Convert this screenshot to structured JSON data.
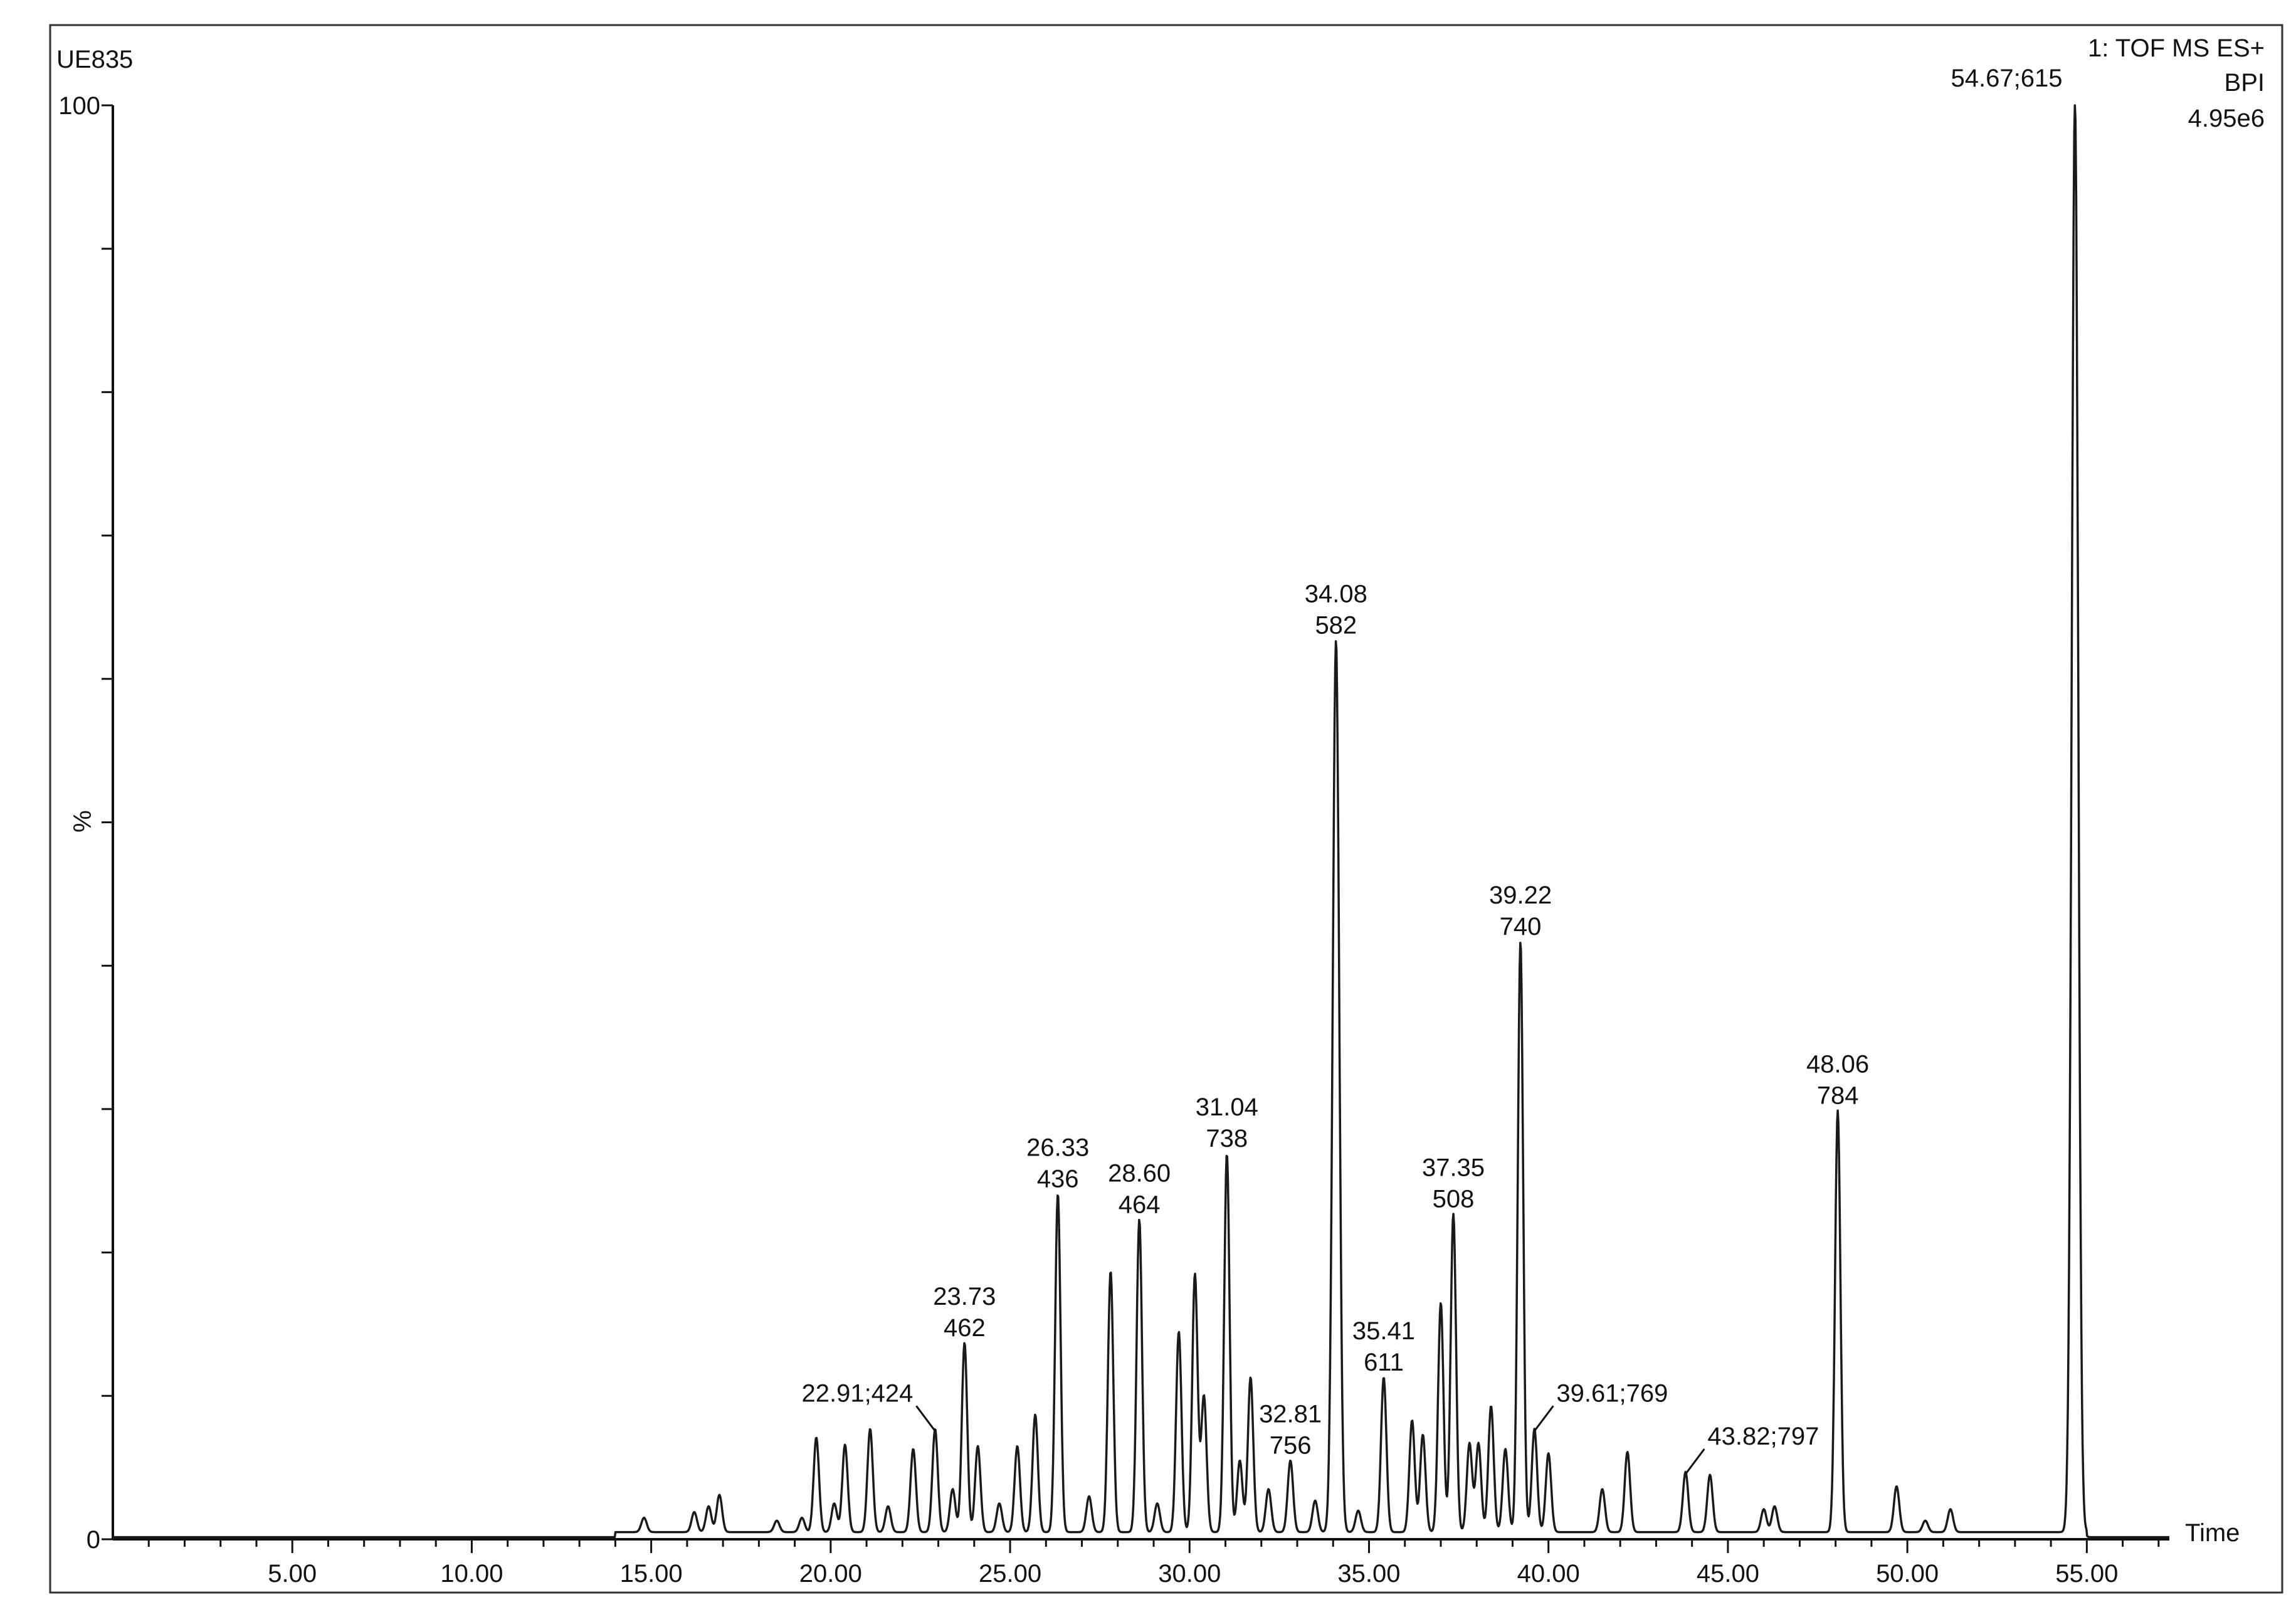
{
  "sample_id": "UE835",
  "header": {
    "function": "1: TOF MS ES+",
    "trace_type": "BPI",
    "base_peak_label": "54.67;615",
    "max_intensity": "4.95e6"
  },
  "colors": {
    "trace": "#1a1a1a",
    "axis": "#111111",
    "background": "#ffffff",
    "frame": "#333333"
  },
  "chart_data": {
    "type": "line",
    "title": "",
    "xlabel": "Time",
    "ylabel": "%",
    "xlim": [
      0,
      57.3
    ],
    "ylim": [
      0,
      100
    ],
    "xticks": [
      5,
      10,
      15,
      20,
      25,
      30,
      35,
      40,
      45,
      50,
      55
    ],
    "xtick_labels": [
      "5.00",
      "10.00",
      "15.00",
      "20.00",
      "25.00",
      "30.00",
      "35.00",
      "40.00",
      "45.00",
      "50.00",
      "55.00"
    ],
    "yticks": [
      0,
      100
    ],
    "ytick_labels": [
      "0",
      "100"
    ],
    "grid": false,
    "legend": "none",
    "series": [
      {
        "peaks": [
          {
            "x": 14.8,
            "y": 1.0
          },
          {
            "x": 16.2,
            "y": 1.4
          },
          {
            "x": 16.6,
            "y": 1.8
          },
          {
            "x": 16.9,
            "y": 2.6
          },
          {
            "x": 18.5,
            "y": 0.8
          },
          {
            "x": 19.2,
            "y": 1.0
          },
          {
            "x": 19.6,
            "y": 6.6
          },
          {
            "x": 20.1,
            "y": 2.0
          },
          {
            "x": 20.4,
            "y": 6.1
          },
          {
            "x": 21.1,
            "y": 7.2
          },
          {
            "x": 21.6,
            "y": 1.8
          },
          {
            "x": 22.3,
            "y": 5.8
          },
          {
            "x": 22.91,
            "y": 7.2
          },
          {
            "x": 23.4,
            "y": 3.0
          },
          {
            "x": 23.73,
            "y": 13.2
          },
          {
            "x": 24.1,
            "y": 6.0
          },
          {
            "x": 24.7,
            "y": 2.0
          },
          {
            "x": 25.2,
            "y": 6.0
          },
          {
            "x": 25.7,
            "y": 8.2
          },
          {
            "x": 26.33,
            "y": 23.6
          },
          {
            "x": 27.2,
            "y": 2.5
          },
          {
            "x": 27.8,
            "y": 18.2
          },
          {
            "x": 28.6,
            "y": 21.8
          },
          {
            "x": 29.1,
            "y": 2.0
          },
          {
            "x": 29.7,
            "y": 14.0
          },
          {
            "x": 30.15,
            "y": 18.0
          },
          {
            "x": 30.4,
            "y": 9.5
          },
          {
            "x": 31.04,
            "y": 26.4
          },
          {
            "x": 31.4,
            "y": 5.0
          },
          {
            "x": 31.7,
            "y": 10.8
          },
          {
            "x": 32.2,
            "y": 3.0
          },
          {
            "x": 32.81,
            "y": 5.0
          },
          {
            "x": 33.5,
            "y": 2.2
          },
          {
            "x": 34.08,
            "y": 62.2
          },
          {
            "x": 34.7,
            "y": 1.5
          },
          {
            "x": 35.41,
            "y": 10.8
          },
          {
            "x": 36.2,
            "y": 7.8
          },
          {
            "x": 36.5,
            "y": 6.8
          },
          {
            "x": 37.0,
            "y": 16.0
          },
          {
            "x": 37.35,
            "y": 22.2
          },
          {
            "x": 37.8,
            "y": 6.2
          },
          {
            "x": 38.05,
            "y": 6.2
          },
          {
            "x": 38.4,
            "y": 8.8
          },
          {
            "x": 38.8,
            "y": 5.8
          },
          {
            "x": 39.22,
            "y": 41.2
          },
          {
            "x": 39.61,
            "y": 7.2
          },
          {
            "x": 40.0,
            "y": 5.5
          },
          {
            "x": 41.5,
            "y": 3.0
          },
          {
            "x": 42.2,
            "y": 5.6
          },
          {
            "x": 43.82,
            "y": 4.2
          },
          {
            "x": 44.5,
            "y": 4.0
          },
          {
            "x": 46.0,
            "y": 1.6
          },
          {
            "x": 46.3,
            "y": 1.8
          },
          {
            "x": 48.06,
            "y": 29.4
          },
          {
            "x": 49.7,
            "y": 3.2
          },
          {
            "x": 50.5,
            "y": 0.8
          },
          {
            "x": 51.2,
            "y": 1.6
          },
          {
            "x": 54.67,
            "y": 100.0
          }
        ]
      }
    ],
    "annotations": [
      {
        "x": 54.67,
        "y": 100.0,
        "text": "54.67;615"
      },
      {
        "x": 34.08,
        "y": 62.2,
        "lines": [
          "34.08",
          "582"
        ]
      },
      {
        "x": 39.22,
        "y": 41.2,
        "lines": [
          "39.22",
          "740"
        ]
      },
      {
        "x": 48.06,
        "y": 29.4,
        "lines": [
          "48.06",
          "784"
        ]
      },
      {
        "x": 31.04,
        "y": 26.4,
        "lines": [
          "31.04",
          "738"
        ]
      },
      {
        "x": 26.33,
        "y": 23.6,
        "lines": [
          "26.33",
          "436"
        ]
      },
      {
        "x": 28.6,
        "y": 21.8,
        "lines": [
          "28.60",
          "464"
        ]
      },
      {
        "x": 37.35,
        "y": 22.2,
        "lines": [
          "37.35",
          "508"
        ]
      },
      {
        "x": 23.73,
        "y": 13.2,
        "lines": [
          "23.73",
          "462"
        ]
      },
      {
        "x": 35.41,
        "y": 10.8,
        "lines": [
          "35.41",
          "611"
        ]
      },
      {
        "x": 32.81,
        "y": 5.0,
        "lines": [
          "32.81",
          "756"
        ]
      },
      {
        "x": 22.91,
        "y": 7.2,
        "text": "22.91;424"
      },
      {
        "x": 39.61,
        "y": 7.2,
        "text": "39.61;769"
      },
      {
        "x": 43.82,
        "y": 4.2,
        "text": "43.82;797"
      }
    ]
  }
}
